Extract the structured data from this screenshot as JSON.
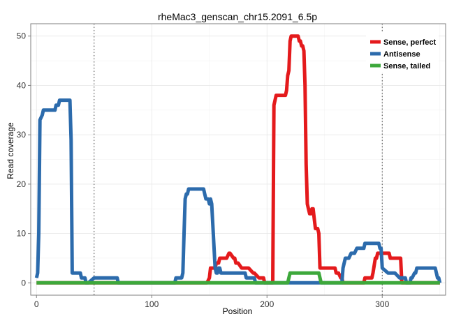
{
  "chart_data": {
    "type": "line",
    "title": "rheMac3_genscan_chr15.2091_6.5p",
    "xlabel": "Position",
    "ylabel": "Read coverage",
    "xlim": [
      -5,
      355
    ],
    "ylim": [
      -2.5,
      52.5
    ],
    "xticks": [
      0,
      100,
      200,
      300
    ],
    "yticks": [
      0,
      10,
      20,
      30,
      40,
      50
    ],
    "grid": true,
    "legend_position": "top-right",
    "vlines": [
      50,
      300
    ],
    "series": [
      {
        "name": "Sense, perfect",
        "color": "#E41A1C",
        "x": [
          0,
          148,
          150,
          151,
          155,
          156,
          158,
          159,
          165,
          167,
          168,
          171,
          172,
          173,
          175,
          178,
          179,
          180,
          183,
          184,
          188,
          189,
          193,
          194,
          196,
          197,
          198,
          205,
          206,
          207,
          208,
          210,
          211,
          216,
          217,
          218,
          219,
          220,
          221,
          222,
          223,
          227,
          228,
          229,
          230,
          231,
          232,
          233,
          234,
          235,
          236,
          237,
          238,
          239,
          240,
          241,
          242,
          244,
          245,
          246,
          252,
          253,
          254,
          255,
          256,
          257,
          258,
          259,
          260,
          261,
          262,
          264,
          265,
          266,
          284,
          285,
          286,
          288,
          289,
          290,
          291,
          292,
          294,
          295,
          296,
          297,
          298,
          306,
          307,
          308,
          316,
          317,
          350
        ],
        "y": [
          0,
          0,
          1,
          3,
          3,
          4,
          4,
          5,
          5,
          6,
          6,
          5,
          5,
          4,
          4,
          3,
          3,
          3,
          3,
          3,
          2,
          2,
          1,
          1,
          1,
          1,
          0,
          0,
          36,
          37,
          38,
          38,
          38,
          38,
          39,
          42,
          43,
          49,
          50,
          50,
          50,
          50,
          49,
          49,
          48,
          48,
          47,
          40,
          24,
          16,
          15,
          14,
          14,
          15,
          15,
          13,
          11,
          11,
          10,
          3,
          3,
          3,
          3,
          3,
          3,
          3,
          3,
          3,
          2,
          2,
          2,
          1,
          1,
          0,
          0,
          1,
          1,
          1,
          1,
          1,
          1,
          2,
          5,
          5,
          6,
          6,
          6,
          6,
          5,
          5,
          5,
          0,
          0
        ]
      },
      {
        "name": "Antisense",
        "color": "#2C6BAC",
        "x": [
          0,
          1,
          2,
          3,
          5,
          6,
          10,
          11,
          15,
          16,
          17,
          18,
          19,
          20,
          28,
          29,
          30,
          31,
          36,
          37,
          38,
          39,
          40,
          42,
          43,
          45,
          50,
          51,
          70,
          71,
          120,
          121,
          126,
          127,
          128,
          129,
          130,
          131,
          132,
          133,
          134,
          136,
          138,
          139,
          140,
          145,
          146,
          147,
          148,
          149,
          150,
          151,
          152,
          155,
          156,
          157,
          158,
          159,
          160,
          171,
          172,
          173,
          174,
          175,
          176,
          180,
          181,
          182,
          183,
          185,
          186,
          188,
          189,
          190,
          191,
          193,
          195,
          196,
          199,
          200,
          264,
          265,
          266,
          268,
          270,
          271,
          273,
          274,
          276,
          278,
          279,
          283,
          284,
          285,
          290,
          291,
          296,
          297,
          298,
          299,
          300,
          305,
          306,
          307,
          310,
          311,
          315,
          316,
          317,
          318,
          320,
          321,
          324,
          325,
          326,
          328,
          329,
          330,
          342,
          343,
          345,
          346,
          347,
          348,
          349,
          350
        ],
        "y": [
          1,
          2,
          10,
          33,
          34,
          35,
          35,
          35,
          35,
          35,
          36,
          36,
          36,
          37,
          37,
          37,
          29,
          2,
          2,
          2,
          2,
          1,
          1,
          1,
          0,
          0,
          1,
          1,
          1,
          0,
          0,
          1,
          1,
          2,
          10,
          17,
          18,
          18,
          19,
          19,
          19,
          19,
          19,
          19,
          19,
          19,
          18,
          17,
          17,
          17,
          16,
          17,
          16,
          3,
          2,
          2,
          3,
          3,
          2,
          2,
          2,
          2,
          2,
          2,
          2,
          2,
          2,
          1,
          1,
          1,
          1,
          1,
          1,
          0,
          0,
          0,
          0,
          0,
          0,
          0,
          0,
          0,
          3,
          5,
          5,
          5,
          6,
          6,
          6,
          7,
          7,
          7,
          7,
          8,
          8,
          8,
          8,
          8,
          7,
          7,
          3,
          2,
          2,
          2,
          2,
          2,
          1,
          1,
          1,
          1,
          1,
          0,
          0,
          1,
          1,
          2,
          2,
          3,
          3,
          3,
          3,
          3,
          2,
          1,
          1,
          0
        ]
      },
      {
        "name": "Sense, tailed",
        "color": "#3DA83B",
        "x": [
          0,
          218,
          219,
          220,
          241,
          242,
          243,
          244,
          245,
          246,
          247,
          350
        ],
        "y": [
          0,
          0,
          1,
          2,
          2,
          2,
          2,
          2,
          2,
          1,
          0,
          0
        ]
      }
    ]
  }
}
